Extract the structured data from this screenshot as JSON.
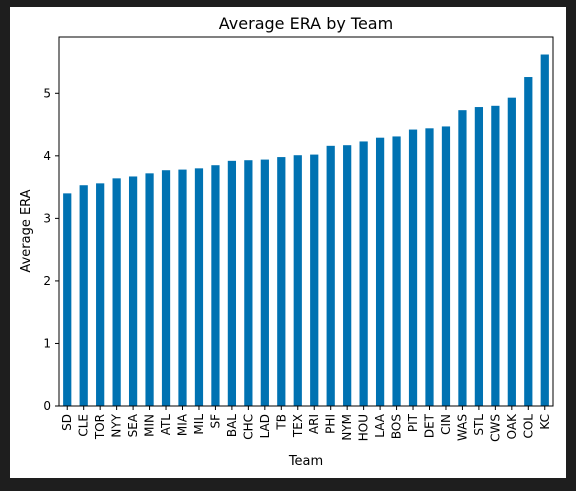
{
  "chart_data": {
    "type": "bar",
    "title": "Average ERA by Team",
    "xlabel": "Team",
    "ylabel": "Average ERA",
    "ylim": [
      0,
      5.9
    ],
    "yticks": [
      0,
      1,
      2,
      3,
      4,
      5
    ],
    "grid": false,
    "bar_color": "#0072b2",
    "categories": [
      "SD",
      "CLE",
      "TOR",
      "NYY",
      "SEA",
      "MIN",
      "ATL",
      "MIA",
      "MIL",
      "SF",
      "BAL",
      "CHC",
      "LAD",
      "TB",
      "TEX",
      "ARI",
      "PHI",
      "NYM",
      "HOU",
      "LAA",
      "BOS",
      "PIT",
      "DET",
      "CIN",
      "WAS",
      "STL",
      "CWS",
      "OAK",
      "COL",
      "KC"
    ],
    "values": [
      3.4,
      3.53,
      3.56,
      3.64,
      3.67,
      3.72,
      3.77,
      3.78,
      3.8,
      3.85,
      3.92,
      3.93,
      3.94,
      3.98,
      4.01,
      4.02,
      4.16,
      4.17,
      4.23,
      4.29,
      4.31,
      4.42,
      4.44,
      4.47,
      4.73,
      4.78,
      4.8,
      4.93,
      5.26,
      5.62
    ]
  }
}
